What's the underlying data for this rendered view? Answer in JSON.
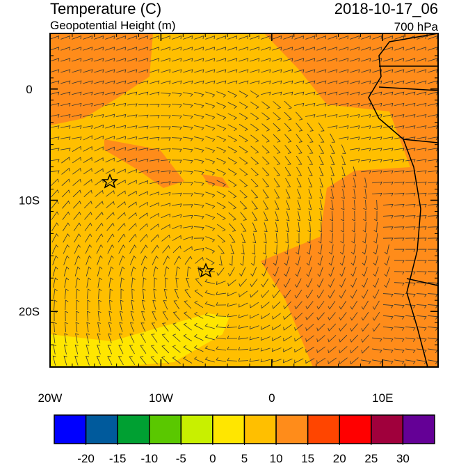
{
  "header": {
    "title": "Temperature (C)",
    "subtitle": "Geopotential Height (m)",
    "time": "2018-10-17_06",
    "level": "700 hPa"
  },
  "map": {
    "lonlim": [
      -20,
      15
    ],
    "latlim": [
      -25,
      5
    ],
    "lonticks": [
      {
        "value": -20,
        "label": "20W"
      },
      {
        "value": -10,
        "label": "10W"
      },
      0,
      {
        "value": 10,
        "label": "10E"
      }
    ],
    "latticks": [
      0,
      {
        "value": -10,
        "label": "10S"
      },
      {
        "value": -20,
        "label": "20S"
      }
    ]
  },
  "colorbar": {
    "levels": [
      -20,
      -15,
      -10,
      -5,
      0,
      5,
      10,
      15,
      20,
      25,
      30
    ],
    "colors": [
      "#0000ff",
      "#005a9c",
      "#00a032",
      "#5ac800",
      "#c8f000",
      "#ffe600",
      "#ffbf00",
      "#ff8c1a",
      "#ff4500",
      "#ff0000",
      "#a0003c",
      "#640096"
    ]
  }
}
